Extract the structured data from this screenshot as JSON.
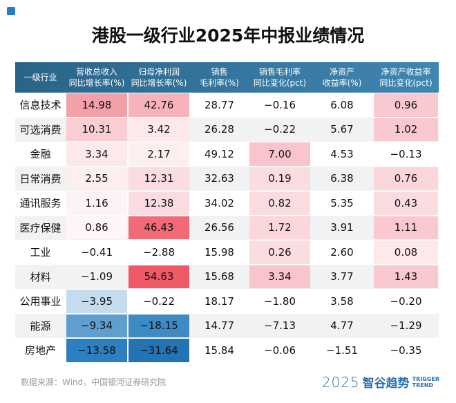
{
  "header": {
    "title": "港股一级行业2025年中报业绩情况"
  },
  "table": {
    "columns": [
      [
        "一级行业"
      ],
      [
        "营收总收入",
        "同比增长率(%)"
      ],
      [
        "归母净利润",
        "同比增长率(%)"
      ],
      [
        "销售",
        "毛利率(%)"
      ],
      [
        "销售毛利率",
        "同比变化(pct)"
      ],
      [
        "净资产",
        "收益率(%)"
      ],
      [
        "净资产收益率",
        "同比变化(pct)"
      ]
    ],
    "rows": [
      [
        "信息技术",
        "14.98",
        "42.76",
        "28.77",
        "−0.16",
        "6.08",
        "0.96"
      ],
      [
        "可选消费",
        "10.31",
        "3.42",
        "26.28",
        "−0.22",
        "5.67",
        "1.02"
      ],
      [
        "金融",
        "3.34",
        "2.17",
        "49.12",
        "7.00",
        "4.53",
        "−0.13"
      ],
      [
        "日常消费",
        "2.55",
        "12.31",
        "32.63",
        "0.19",
        "6.38",
        "0.76"
      ],
      [
        "通讯服务",
        "1.16",
        "12.38",
        "34.02",
        "0.82",
        "5.35",
        "0.43"
      ],
      [
        "医疗保健",
        "0.86",
        "46.43",
        "26.56",
        "1.72",
        "3.91",
        "1.11"
      ],
      [
        "工业",
        "−0.41",
        "−2.88",
        "15.98",
        "0.26",
        "2.60",
        "0.08"
      ],
      [
        "材料",
        "−1.09",
        "54.63",
        "15.68",
        "3.34",
        "3.77",
        "1.43"
      ],
      [
        "公用事业",
        "−3.95",
        "−0.22",
        "18.17",
        "−1.80",
        "3.58",
        "−0.20"
      ],
      [
        "能源",
        "−9.34",
        "−18.15",
        "14.77",
        "−7.13",
        "4.77",
        "−1.29"
      ],
      [
        "房地产",
        "−13.58",
        "−31.64",
        "15.84",
        "−0.06",
        "−1.51",
        "−0.35"
      ]
    ],
    "cell_colors": [
      [
        null,
        "#f4a0a8",
        "#f6b3b9",
        null,
        null,
        null,
        "#f9c9cf"
      ],
      [
        null,
        "#f9cdd2",
        "#fde8ea",
        null,
        null,
        null,
        "#f9c9cf"
      ],
      [
        null,
        "#fde8ea",
        "#fdeef0",
        null,
        "#f9c4cb",
        null,
        null
      ],
      [
        null,
        "#fdeef0",
        "#fbdde1",
        null,
        "#fbdde1",
        null,
        "#fbd6db"
      ],
      [
        null,
        "#fef3f4",
        "#fbdde1",
        null,
        "#fbdde1",
        null,
        "#fbdde1"
      ],
      [
        null,
        "#fef5f6",
        "#f26a75",
        null,
        "#fbd6db",
        null,
        "#f9c9cf"
      ],
      [
        null,
        null,
        null,
        null,
        "#fbdde1",
        null,
        "#fde8ea"
      ],
      [
        null,
        null,
        "#ef5a66",
        null,
        "#f9c4cb",
        null,
        "#f9c9cf"
      ],
      [
        null,
        "#c5dcee",
        null,
        null,
        null,
        null,
        null
      ],
      [
        null,
        "#5f9fcf",
        "#3d8ac4",
        null,
        null,
        null,
        null
      ],
      [
        null,
        "#2e7fbf",
        "#2473b2",
        null,
        null,
        null,
        null
      ]
    ]
  },
  "footer": {
    "source": "数据来源：Wind，中国银河证券研究院",
    "logo_year": "2025",
    "logo_name": "智谷趋势",
    "logo_en": [
      "TRIGGER",
      "TREND"
    ]
  }
}
